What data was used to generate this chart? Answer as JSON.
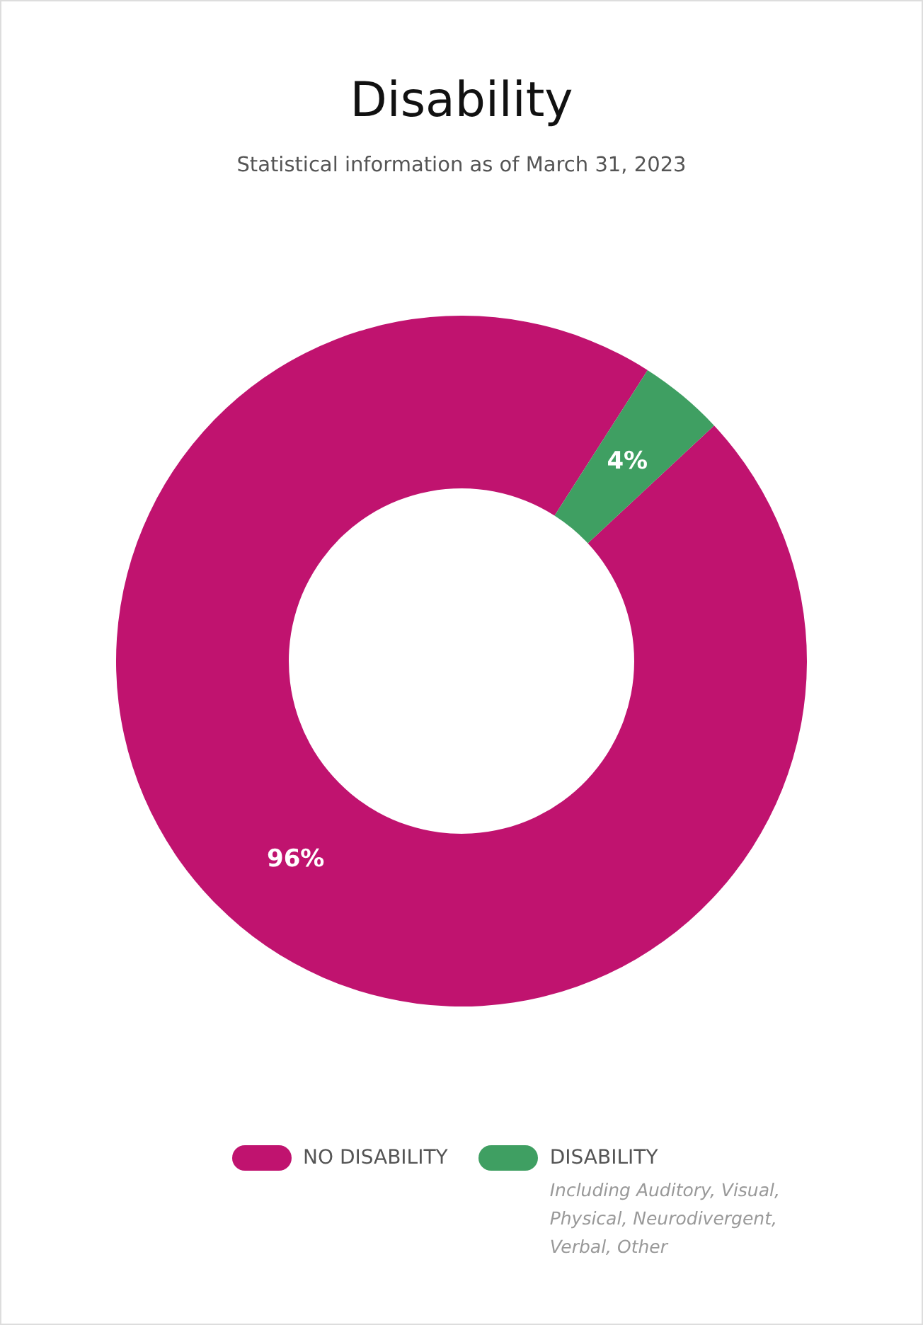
{
  "chart_data": {
    "type": "donut",
    "title": "Disability",
    "subtitle": "Statistical information as of March 31, 2023",
    "categories": [
      "NO DISABILITY",
      "DISABILITY"
    ],
    "values": [
      96,
      4
    ],
    "colors": [
      "#c0136f",
      "#3f9f62"
    ],
    "value_labels": [
      "96%",
      "4%"
    ],
    "legend": "bottom",
    "annotations": [
      "Including Auditory, Visual, Physical, Neurodivergent, Verbal, Other"
    ]
  }
}
